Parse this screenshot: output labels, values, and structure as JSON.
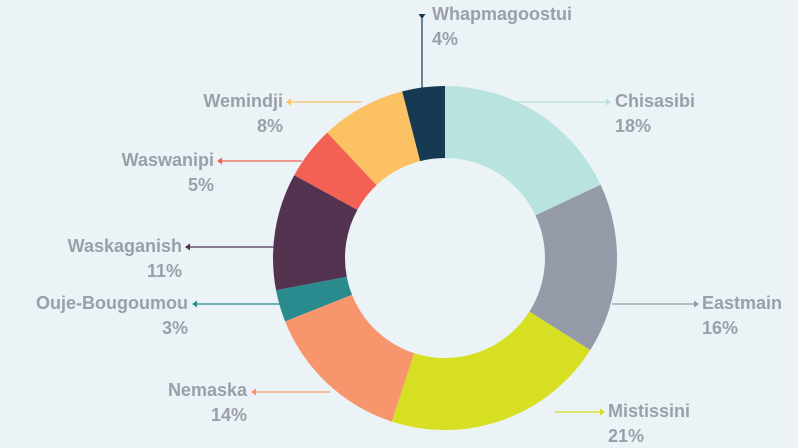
{
  "chart_data": {
    "type": "donut",
    "categories": [
      "Chisasibi",
      "Eastmain",
      "Mistissini",
      "Nemaska",
      "Ouje-Bougoumou",
      "Waskaganish",
      "Waswanipi",
      "Wemindji",
      "Whapmagoostui"
    ],
    "values": [
      18,
      16,
      21,
      14,
      3,
      11,
      5,
      8,
      4
    ],
    "value_labels": [
      "18%",
      "16%",
      "21%",
      "14%",
      "3%",
      "11%",
      "5%",
      "8%",
      "4%"
    ],
    "colors": [
      "#b9e3df",
      "#959aa8",
      "#d6df22",
      "#f7956c",
      "#2a8b8e",
      "#533350",
      "#f26153",
      "#fbc162",
      "#163a51"
    ]
  }
}
